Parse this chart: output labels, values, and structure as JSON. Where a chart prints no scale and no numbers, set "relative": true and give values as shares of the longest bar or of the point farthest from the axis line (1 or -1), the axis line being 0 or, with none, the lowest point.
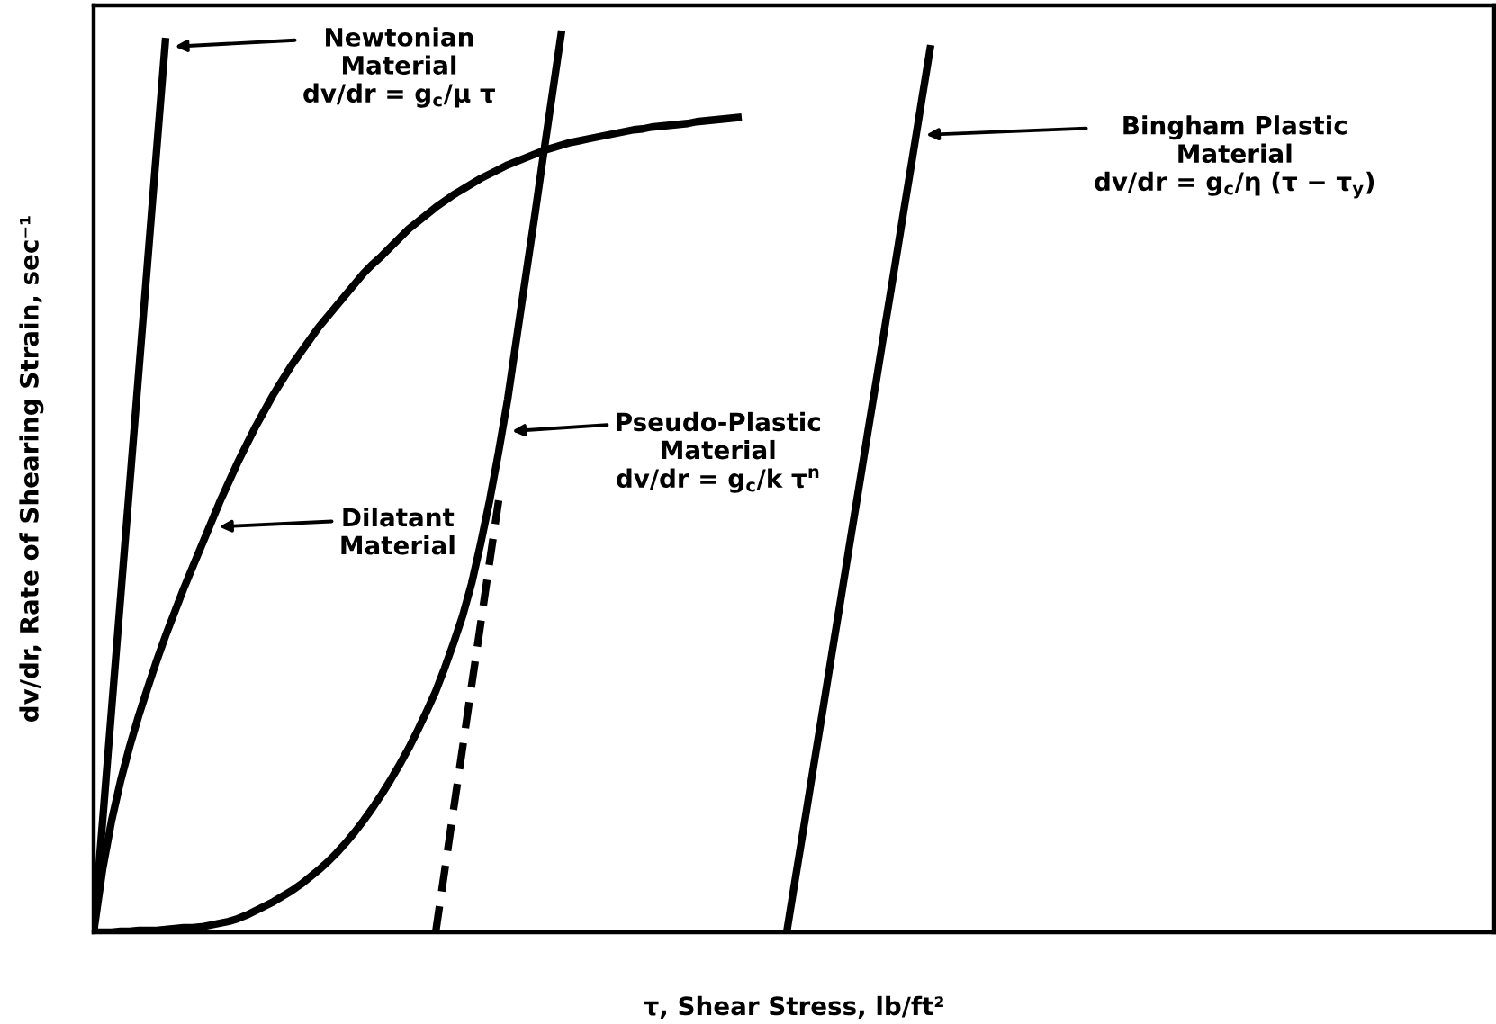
{
  "chart_data": {
    "type": "line",
    "relative": true,
    "xlabel": "τ, Shear Stress, lb/ft²",
    "ylabel": "dv/dr, Rate of Shearing Strain, sec⁻¹",
    "categories": [
      null,
      null,
      null,
      null,
      null,
      null,
      null,
      null,
      null,
      null,
      null,
      null,
      null,
      null,
      null,
      null,
      null,
      null,
      null,
      null,
      null,
      null,
      null,
      null,
      null,
      null,
      null,
      null,
      null,
      null,
      null,
      null,
      null,
      null,
      null,
      null,
      null,
      null,
      null,
      null,
      null,
      null,
      null,
      null,
      null,
      null,
      null,
      null,
      null,
      null,
      null,
      null,
      null,
      null,
      null,
      null,
      null,
      null,
      null,
      null,
      null,
      null,
      null,
      null,
      null,
      null,
      null,
      null,
      null,
      null,
      null,
      null,
      null,
      null,
      null,
      null,
      null,
      null,
      null,
      null,
      null,
      null,
      null,
      null,
      null,
      null,
      null,
      null,
      null,
      null,
      null,
      null,
      null,
      null
    ],
    "series": [
      {
        "color": "#000000",
        "values": [
          0,
          0.124,
          0.248,
          0.372,
          0.496,
          0.62,
          0.744,
          0.868,
          0.992,
          null,
          null,
          null,
          null,
          null,
          null,
          null,
          null,
          null,
          null,
          null,
          null,
          null,
          null,
          null,
          null,
          null,
          null,
          null,
          null,
          null,
          null,
          null,
          null,
          null,
          null,
          null,
          null,
          null,
          null,
          null,
          null,
          null,
          null,
          null,
          null,
          null,
          null,
          null,
          null,
          null,
          null,
          null,
          null,
          null,
          null,
          null,
          null,
          null,
          null,
          null,
          null,
          null,
          null,
          null,
          null,
          null,
          null,
          null,
          null,
          null,
          null,
          null,
          null,
          null,
          null,
          null,
          null,
          null,
          null,
          null,
          null,
          null,
          null,
          null,
          null,
          null,
          null,
          null,
          null,
          null,
          null,
          null,
          null,
          null
        ]
      },
      {
        "color": "#000000",
        "values": [
          0,
          0.07,
          0.124,
          0.168,
          0.206,
          0.24,
          0.271,
          0.301,
          0.329,
          0.355,
          0.381,
          0.405,
          0.429,
          0.453,
          0.477,
          0.499,
          0.521,
          0.541,
          0.561,
          0.579,
          0.597,
          0.613,
          0.629,
          0.643,
          0.657,
          0.671,
          0.683,
          0.695,
          0.707,
          0.719,
          0.731,
          0.741,
          0.75,
          0.76,
          0.77,
          0.78,
          0.788,
          0.796,
          0.804,
          0.811,
          0.818,
          0.824,
          0.83,
          0.836,
          0.841,
          0.846,
          0.851,
          0.855,
          0.859,
          0.863,
          0.867,
          0.87,
          0.873,
          0.876,
          0.878,
          0.88,
          0.882,
          0.884,
          0.886,
          0.888,
          0.89,
          0.891,
          0.893,
          0.894,
          0.895,
          0.896,
          0.897,
          0.899,
          0.9,
          0.901,
          0.902,
          0.903,
          0.904,
          null,
          null,
          null,
          null,
          null,
          null,
          null,
          null,
          null,
          null,
          null,
          null,
          null,
          null,
          null,
          null,
          null,
          null,
          null,
          null,
          null
        ]
      },
      {
        "color": "#000000",
        "values": [
          0,
          0,
          0,
          0.001,
          0.001,
          0.002,
          0.002,
          0.002,
          0.003,
          0.004,
          0.005,
          0.005,
          0.006,
          0.008,
          0.01,
          0.012,
          0.015,
          0.019,
          0.024,
          0.029,
          0.034,
          0.04,
          0.046,
          0.053,
          0.061,
          0.069,
          0.078,
          0.088,
          0.099,
          0.111,
          0.124,
          0.138,
          0.153,
          0.169,
          0.186,
          0.204,
          0.224,
          0.245,
          0.267,
          0.293,
          0.321,
          0.351,
          0.387,
          0.431,
          0.479,
          0.533,
          0.591,
          0.659,
          0.727,
          0.794,
          0.864,
          0.932,
          1.0,
          null,
          null,
          null,
          null,
          null,
          null,
          null,
          null,
          null,
          null,
          null,
          null,
          null,
          null,
          null,
          null,
          null,
          null,
          null,
          null,
          null,
          null,
          null,
          null,
          null,
          null,
          null,
          null,
          null,
          null,
          null,
          null,
          null,
          null,
          null,
          null,
          null,
          null,
          null,
          null,
          null
        ]
      },
      {
        "color": "#000000",
        "line_style": "dashed",
        "values": [
          null,
          null,
          null,
          null,
          null,
          null,
          null,
          null,
          null,
          null,
          null,
          null,
          null,
          null,
          null,
          null,
          null,
          null,
          null,
          null,
          null,
          null,
          null,
          null,
          null,
          null,
          null,
          null,
          null,
          null,
          null,
          null,
          null,
          null,
          null,
          null,
          null,
          null,
          0,
          0.068,
          0.137,
          0.205,
          0.274,
          0.342,
          0.411,
          0.479,
          null,
          null,
          null,
          null,
          null,
          null,
          null,
          null,
          null,
          null,
          null,
          null,
          null,
          null,
          null,
          null,
          null,
          null,
          null,
          null,
          null,
          null,
          null,
          null,
          null,
          null,
          null,
          null,
          null,
          null,
          null,
          null,
          null,
          null,
          null,
          null,
          null,
          null,
          null,
          null,
          null,
          null,
          null,
          null,
          null,
          null,
          null,
          null
        ]
      },
      {
        "color": "#000000",
        "values": [
          null,
          null,
          null,
          null,
          null,
          null,
          null,
          null,
          null,
          null,
          null,
          null,
          null,
          null,
          null,
          null,
          null,
          null,
          null,
          null,
          null,
          null,
          null,
          null,
          null,
          null,
          null,
          null,
          null,
          null,
          null,
          null,
          null,
          null,
          null,
          null,
          null,
          null,
          null,
          null,
          null,
          null,
          null,
          null,
          null,
          null,
          null,
          null,
          null,
          null,
          null,
          null,
          null,
          null,
          null,
          null,
          null,
          null,
          null,
          null,
          null,
          null,
          null,
          null,
          null,
          null,
          null,
          null,
          null,
          null,
          null,
          null,
          null,
          null,
          null,
          null,
          null,
          0,
          0.062,
          0.123,
          0.185,
          0.246,
          0.308,
          0.369,
          0.431,
          0.492,
          0.554,
          0.615,
          0.677,
          0.738,
          0.8,
          0.861,
          0.923,
          0.984
        ]
      }
    ],
    "annotations": [
      "Newtonian\nMaterial\ndv/dr = g$_{c}$/μ τ",
      "Dilatant\nMaterial",
      "Pseudo-Plastic\nMaterial\ndv/dr = g$_{c}$/k τ$^{n}$",
      "Bingham Plastic\nMaterial\ndv/dr = g$_{c}$/η (τ − τ$_{y}$)"
    ]
  }
}
